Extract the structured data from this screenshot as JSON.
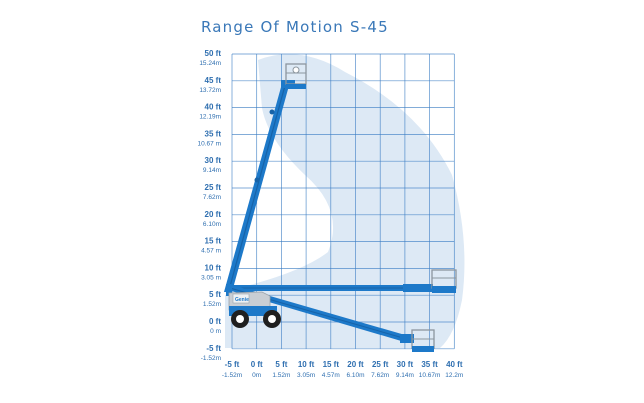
{
  "title": "Range Of Motion S-45",
  "machine_badge": "Genie",
  "colors": {
    "grid": "#3b7dc4",
    "envelope": "#dde9f5",
    "boom": "#1d79c9",
    "boom_dark": "#1763a8",
    "labels": "#2f6fb0",
    "chassis": "#c9ced4"
  },
  "y_axis": [
    {
      "ft": "50 ft",
      "m": "15.24m"
    },
    {
      "ft": "45 ft",
      "m": "13.72m"
    },
    {
      "ft": "40 ft",
      "m": "12.19m"
    },
    {
      "ft": "35 ft",
      "m": "10.67 m"
    },
    {
      "ft": "30 ft",
      "m": "9.14m"
    },
    {
      "ft": "25 ft",
      "m": "7.62m"
    },
    {
      "ft": "20 ft",
      "m": "6.10m"
    },
    {
      "ft": "15 ft",
      "m": "4.57 m"
    },
    {
      "ft": "10 ft",
      "m": "3.05 m"
    },
    {
      "ft": "5 ft",
      "m": "1.52m"
    },
    {
      "ft": "0 ft",
      "m": "0 m"
    },
    {
      "ft": "-5 ft",
      "m": "-1.52m"
    }
  ],
  "x_axis": [
    {
      "ft": "-5 ft",
      "m": "-1.52m"
    },
    {
      "ft": "0 ft",
      "m": "0m"
    },
    {
      "ft": "5 ft",
      "m": "1.52m"
    },
    {
      "ft": "10 ft",
      "m": "3.05m"
    },
    {
      "ft": "15 ft",
      "m": "4.57m"
    },
    {
      "ft": "20 ft",
      "m": "6.10m"
    },
    {
      "ft": "25 ft",
      "m": "7.62m"
    },
    {
      "ft": "30 ft",
      "m": "9.14m"
    },
    {
      "ft": "35 ft",
      "m": "10.67m"
    },
    {
      "ft": "40 ft",
      "m": "12.2m"
    }
  ]
}
